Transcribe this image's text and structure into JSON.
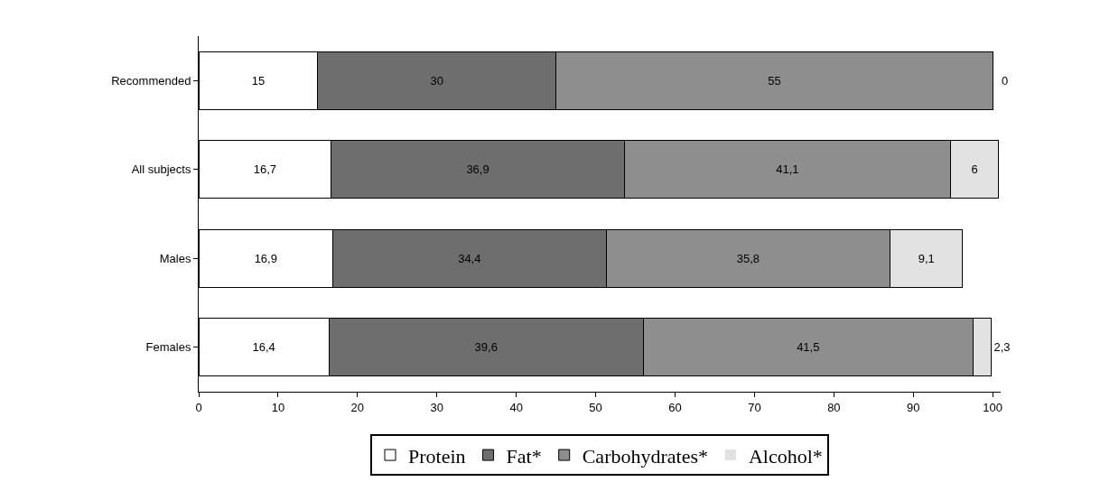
{
  "chart_data": {
    "type": "bar",
    "orientation": "horizontal",
    "stacked": true,
    "categories": [
      "Recommended",
      "All subjects",
      "Males",
      "Females"
    ],
    "series": [
      {
        "name": "Protein",
        "color": "#ffffff",
        "values": [
          15,
          16.7,
          16.9,
          16.4
        ],
        "value_labels": [
          "15",
          "16,7",
          "16,9",
          "16,4"
        ]
      },
      {
        "name": "Fat*",
        "color": "#6e6e6e",
        "values": [
          30,
          36.9,
          34.4,
          39.6
        ],
        "value_labels": [
          "30",
          "36,9",
          "34,4",
          "39,6"
        ]
      },
      {
        "name": "Carbohydrates*",
        "color": "#8e8e8e",
        "values": [
          55,
          41.1,
          35.8,
          41.5
        ],
        "value_labels": [
          "55",
          "41,1",
          "35,8",
          "41,5"
        ]
      },
      {
        "name": "Alcohol*",
        "color": "#e2e2e2",
        "values": [
          0,
          6,
          9.1,
          2.3
        ],
        "value_labels": [
          "0",
          "6",
          "9,1",
          "2,3"
        ]
      }
    ],
    "xlim": [
      0,
      101
    ],
    "xticks": [
      0,
      10,
      20,
      30,
      40,
      50,
      60,
      70,
      80,
      90,
      100
    ],
    "grid": false,
    "legend": "bottom"
  }
}
